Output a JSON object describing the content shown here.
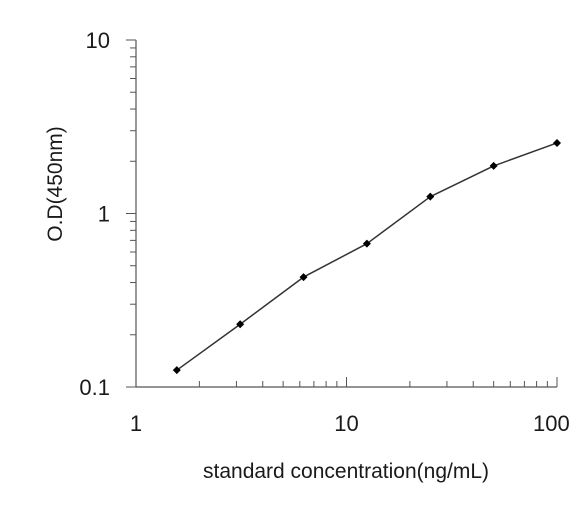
{
  "chart_data": {
    "type": "line",
    "title": "",
    "xlabel": "standard concentration(ng/mL)",
    "ylabel": "O.D(450nm)",
    "x_scale": "log",
    "y_scale": "log",
    "xlim": [
      1,
      100
    ],
    "ylim": [
      0.1,
      10
    ],
    "x_ticks": [
      1,
      10,
      100
    ],
    "x_tick_labels": [
      "1",
      "10",
      "100"
    ],
    "y_ticks": [
      0.1,
      1,
      10
    ],
    "y_tick_labels": [
      "0.1",
      "1",
      "10"
    ],
    "grid": false,
    "legend": "none",
    "series": [
      {
        "x": [
          1.5625,
          3.125,
          6.25,
          12.5,
          25,
          50,
          100
        ],
        "y": [
          0.125,
          0.23,
          0.43,
          0.67,
          1.25,
          1.88,
          2.55
        ]
      }
    ],
    "colors": {
      "line": "#333333",
      "marker": "#000000",
      "axis": "#555555"
    }
  }
}
